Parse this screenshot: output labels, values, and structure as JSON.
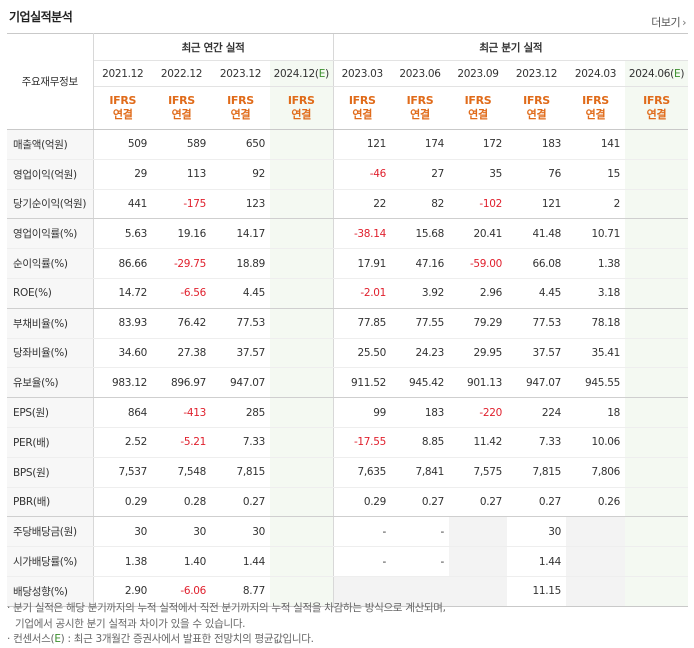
{
  "title": "기업실적분석",
  "more_label": "더보기",
  "row_header": "주요재무정보",
  "annual_group": "최근 연간 실적",
  "quarter_group": "최근 분기 실적",
  "annual_periods": [
    "2021.12",
    "2022.12",
    "2023.12",
    "2024.12(E)"
  ],
  "quarter_periods": [
    "2023.03",
    "2023.06",
    "2023.09",
    "2023.12",
    "2024.03",
    "2024.06(E)"
  ],
  "standard_line1": "IFRS",
  "standard_line2": "연결",
  "rows": [
    {
      "label": "매출액(억원)",
      "values": [
        "509",
        "589",
        "650",
        "",
        "121",
        "174",
        "172",
        "183",
        "141",
        ""
      ]
    },
    {
      "label": "영업이익(억원)",
      "values": [
        "29",
        "113",
        "92",
        "",
        "-46",
        "27",
        "35",
        "76",
        "15",
        ""
      ]
    },
    {
      "label": "당기순이익(억원)",
      "values": [
        "441",
        "-175",
        "123",
        "",
        "22",
        "82",
        "-102",
        "121",
        "2",
        ""
      ]
    },
    {
      "label": "영업이익률(%)",
      "values": [
        "5.63",
        "19.16",
        "14.17",
        "",
        "-38.14",
        "15.68",
        "20.41",
        "41.48",
        "10.71",
        ""
      ]
    },
    {
      "label": "순이익률(%)",
      "values": [
        "86.66",
        "-29.75",
        "18.89",
        "",
        "17.91",
        "47.16",
        "-59.00",
        "66.08",
        "1.38",
        ""
      ]
    },
    {
      "label": "ROE(%)",
      "values": [
        "14.72",
        "-6.56",
        "4.45",
        "",
        "-2.01",
        "3.92",
        "2.96",
        "4.45",
        "3.18",
        ""
      ]
    },
    {
      "label": "부채비율(%)",
      "values": [
        "83.93",
        "76.42",
        "77.53",
        "",
        "77.85",
        "77.55",
        "79.29",
        "77.53",
        "78.18",
        ""
      ]
    },
    {
      "label": "당좌비율(%)",
      "values": [
        "34.60",
        "27.38",
        "37.57",
        "",
        "25.50",
        "24.23",
        "29.95",
        "37.57",
        "35.41",
        ""
      ]
    },
    {
      "label": "유보율(%)",
      "values": [
        "983.12",
        "896.97",
        "947.07",
        "",
        "911.52",
        "945.42",
        "901.13",
        "947.07",
        "945.55",
        ""
      ]
    },
    {
      "label": "EPS(원)",
      "values": [
        "864",
        "-413",
        "285",
        "",
        "99",
        "183",
        "-220",
        "224",
        "18",
        ""
      ]
    },
    {
      "label": "PER(배)",
      "values": [
        "2.52",
        "-5.21",
        "7.33",
        "",
        "-17.55",
        "8.85",
        "11.42",
        "7.33",
        "10.06",
        ""
      ]
    },
    {
      "label": "BPS(원)",
      "values": [
        "7,537",
        "7,548",
        "7,815",
        "",
        "7,635",
        "7,841",
        "7,575",
        "7,815",
        "7,806",
        ""
      ]
    },
    {
      "label": "PBR(배)",
      "values": [
        "0.29",
        "0.28",
        "0.27",
        "",
        "0.29",
        "0.27",
        "0.27",
        "0.27",
        "0.26",
        ""
      ]
    },
    {
      "label": "주당배당금(원)",
      "values": [
        "30",
        "30",
        "30",
        "",
        "-",
        "-",
        "",
        "30",
        "",
        ""
      ]
    },
    {
      "label": "시가배당률(%)",
      "values": [
        "1.38",
        "1.40",
        "1.44",
        "",
        "-",
        "-",
        "",
        "1.44",
        "",
        ""
      ]
    },
    {
      "label": "배당성향(%)",
      "values": [
        "2.90",
        "-6.06",
        "8.77",
        "",
        "",
        "",
        "",
        "11.15",
        "",
        ""
      ]
    }
  ],
  "notes": {
    "line1": "분기 실적은 해당 분기까지의 누적 실적에서 직전 분기까지의 누적 실적을 차감하는 방식으로 계산되며,",
    "line2": "기업에서 공시한 분기 실적과 차이가 있을 수 있습니다.",
    "line3_prefix": "컨센서스(",
    "line3_e": "E",
    "line3_suffix": ") : 최근 3개월간 증권사에서 발표한 전망치의 평균값입니다."
  }
}
